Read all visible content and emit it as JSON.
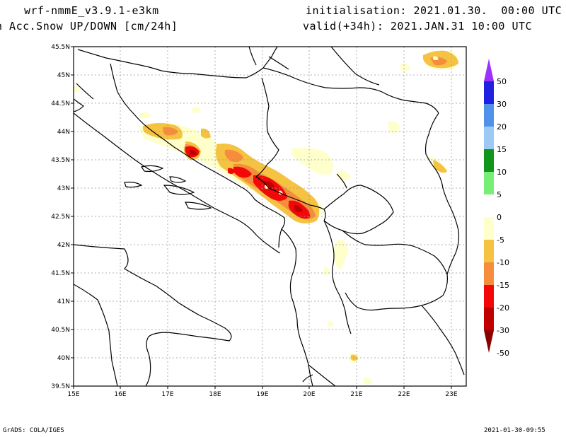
{
  "header": {
    "model": "wrf-nmmE_v3.9.1-e3km",
    "field": "n Acc.Snow UP/DOWN [cm/24h]",
    "init": "initialisation: 2021.01.30.  00:00 UTC",
    "valid": "valid(+34h): 2021.JAN.31 10:00 UTC"
  },
  "footer": {
    "left": "GrADS: COLA/IGES",
    "right": "2021-01-30-09:55"
  },
  "map": {
    "lon_range": [
      15,
      23.3
    ],
    "lat_range": [
      39.5,
      45.5
    ],
    "lon_ticks": [
      "15E",
      "16E",
      "17E",
      "18E",
      "19E",
      "20E",
      "21E",
      "22E",
      "23E"
    ],
    "lat_ticks": [
      "39.5N",
      "40N",
      "40.5N",
      "41N",
      "41.5N",
      "42N",
      "42.5N",
      "43N",
      "43.5N",
      "44N",
      "44.5N",
      "45N",
      "45.5N"
    ],
    "gridlines": "dotted",
    "boundary_color": "#000000"
  },
  "colorbar": {
    "labels": [
      "50",
      "30",
      "20",
      "15",
      "10",
      "5",
      "0",
      "-5",
      "-10",
      "-15",
      "-20",
      "-30",
      "-50"
    ],
    "colors": [
      "#9b30ff",
      "#2020e0",
      "#4f92e8",
      "#9ccaf5",
      "#11951b",
      "#77ef77",
      "#ffffff",
      "#ffffcc",
      "#f5c242",
      "#f58d3c",
      "#f20808",
      "#c00000",
      "#8b0000"
    ]
  }
}
